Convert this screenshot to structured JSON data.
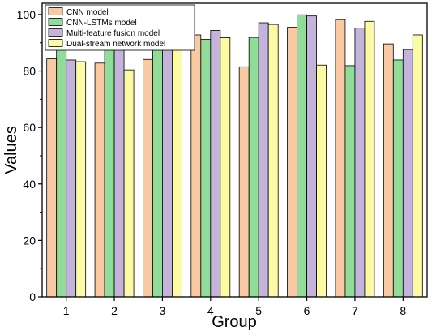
{
  "chart_data": {
    "type": "bar",
    "title": "",
    "xlabel": "Group",
    "ylabel": "Values",
    "categories": [
      "1",
      "2",
      "3",
      "4",
      "5",
      "6",
      "7",
      "8"
    ],
    "ylim": [
      0,
      104
    ],
    "yticks": [
      0,
      20,
      40,
      60,
      80,
      100
    ],
    "grid": false,
    "legend": "top-left",
    "series": [
      {
        "name": "CNN model",
        "color": "#F9C9A4",
        "values": [
          84.3,
          82.8,
          84.1,
          92.8,
          81.5,
          95.5,
          98.2,
          89.6
        ]
      },
      {
        "name": "CNN-LSTMs model",
        "color": "#90DC98",
        "values": [
          87.9,
          89.5,
          92.0,
          91.2,
          91.9,
          99.9,
          81.9,
          83.9
        ]
      },
      {
        "name": "Multi-feature fusion model",
        "color": "#C4B3DB",
        "values": [
          83.9,
          94.8,
          94.0,
          94.4,
          97.1,
          99.5,
          95.2,
          87.6
        ]
      },
      {
        "name": "Dual-stream network model",
        "color": "#FBFBA5",
        "values": [
          83.3,
          80.4,
          98.8,
          91.8,
          96.5,
          82.1,
          97.6,
          92.8
        ]
      }
    ]
  }
}
